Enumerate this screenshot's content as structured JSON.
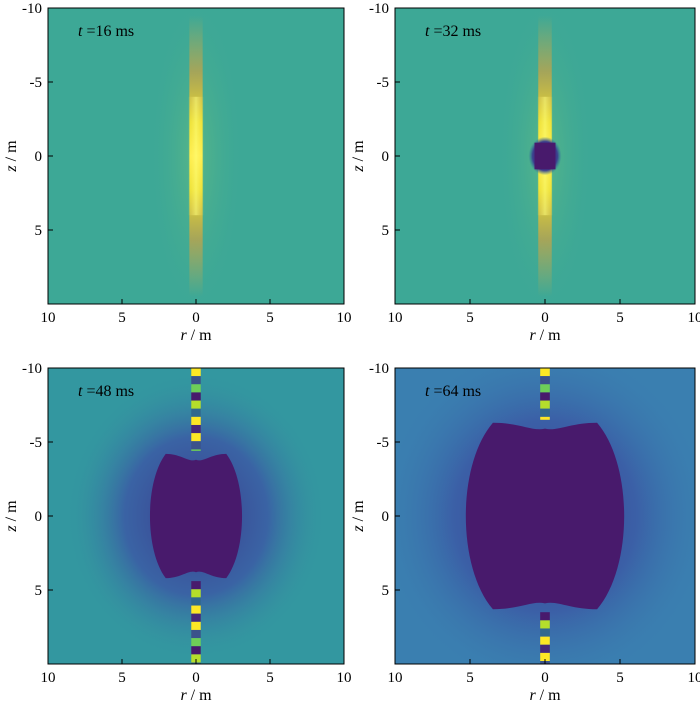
{
  "chart_data": [
    {
      "type": "heatmap",
      "time_label": "t",
      "time_value": "=16 ms",
      "stage": "early",
      "xlabel_var": "r",
      "xlabel_unit": " / m",
      "ylabel_var": "z",
      "ylabel_unit": " / m",
      "x_range": [
        10,
        -10
      ],
      "y_range": [
        -10,
        10
      ],
      "xticks": [
        10,
        5,
        0,
        5,
        10
      ],
      "yticks": [
        -10,
        -5,
        0,
        5
      ],
      "background_color": "#3da896",
      "hole_color": "#481a6c",
      "peak_color": "#fde725"
    },
    {
      "type": "heatmap",
      "time_label": "t",
      "time_value": "=32 ms",
      "stage": "split",
      "xlabel_var": "r",
      "xlabel_unit": " / m",
      "ylabel_var": "z",
      "ylabel_unit": " / m",
      "x_range": [
        10,
        -10
      ],
      "y_range": [
        -10,
        10
      ],
      "xticks": [
        10,
        5,
        0,
        5,
        10
      ],
      "yticks": [
        -10,
        -5,
        0,
        5
      ],
      "background_color": "#3da896",
      "hole_color": "#481a6c",
      "peak_color": "#fde725"
    },
    {
      "type": "heatmap",
      "time_label": "t",
      "time_value": "=48 ms",
      "stage": "cavity",
      "cavity_half_width": 3.3,
      "cavity_half_height": 4.2,
      "xlabel_var": "r",
      "xlabel_unit": " / m",
      "ylabel_var": "z",
      "ylabel_unit": " / m",
      "x_range": [
        10,
        -10
      ],
      "y_range": [
        -10,
        10
      ],
      "xticks": [
        10,
        5,
        0,
        5,
        10
      ],
      "yticks": [
        -10,
        -5,
        0,
        5
      ],
      "background_color": "#3397a0",
      "hole_color": "#481a6c",
      "peak_color": "#fde725"
    },
    {
      "type": "heatmap",
      "time_label": "t",
      "time_value": "=64 ms",
      "stage": "cavity",
      "cavity_half_width": 5.6,
      "cavity_half_height": 6.3,
      "xlabel_var": "r",
      "xlabel_unit": " / m",
      "ylabel_var": "z",
      "ylabel_unit": " / m",
      "x_range": [
        10,
        -10
      ],
      "y_range": [
        -10,
        10
      ],
      "xticks": [
        10,
        5,
        0,
        5,
        10
      ],
      "yticks": [
        -10,
        -5,
        0,
        5
      ],
      "background_color": "#3a7fb0",
      "hole_color": "#481a6c",
      "peak_color": "#fde725"
    }
  ]
}
